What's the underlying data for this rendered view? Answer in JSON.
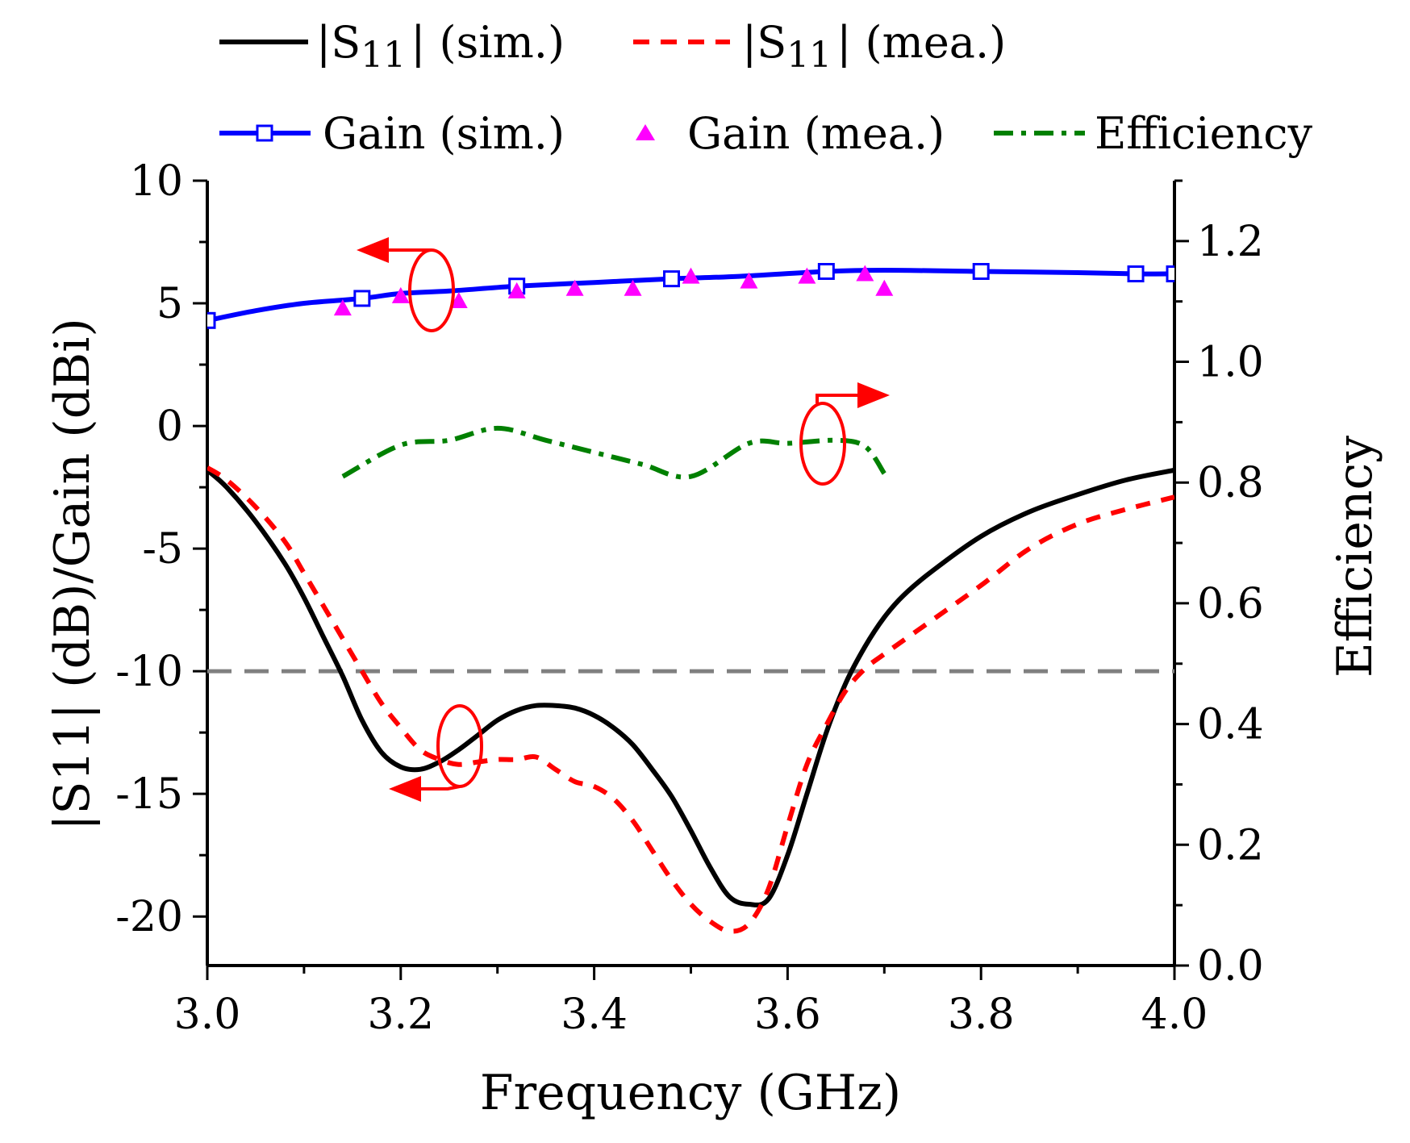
{
  "chart_data": {
    "type": "line",
    "xlabel": "Frequency (GHz)",
    "ylabel_left": "|S11| (dB)/Gain (dBi)",
    "ylabel_right": "Efficiency",
    "xlim": [
      3.0,
      4.0
    ],
    "ylim_left": [
      -22,
      10
    ],
    "ylim_right": [
      0.0,
      1.3
    ],
    "x_ticks": [
      "3.0",
      "3.2",
      "3.4",
      "3.6",
      "3.8",
      "4.0"
    ],
    "x_tick_values": [
      3.0,
      3.2,
      3.4,
      3.6,
      3.8,
      4.0
    ],
    "y_left_ticks": [
      "10",
      "5",
      "0",
      "-5",
      "-10",
      "-15",
      "-20"
    ],
    "y_left_tick_values": [
      10,
      5,
      0,
      -5,
      -10,
      -15,
      -20
    ],
    "y_right_ticks": [
      "1.2",
      "1.0",
      "0.8",
      "0.6",
      "0.4",
      "0.2",
      "0.0"
    ],
    "y_right_tick_values": [
      1.2,
      1.0,
      0.8,
      0.6,
      0.4,
      0.2,
      0.0
    ],
    "legend": {
      "position": "top",
      "s11_prefix": "|S",
      "s11_sub": "11",
      "s11_sim_suffix": "| (sim.)",
      "s11_mea_suffix": "| (mea.)",
      "gain_sim": "Gain (sim.)",
      "gain_mea": "Gain (mea.)",
      "efficiency": "Efficiency"
    },
    "reference_line": {
      "axis": "left",
      "y": -10,
      "color": "#808080",
      "style": "dashed"
    },
    "series": [
      {
        "name": "|S11| (sim.)",
        "axis": "left",
        "color": "#000000",
        "style": "solid",
        "x": [
          3.0,
          3.02,
          3.05,
          3.08,
          3.1,
          3.12,
          3.14,
          3.16,
          3.18,
          3.2,
          3.22,
          3.24,
          3.26,
          3.28,
          3.3,
          3.32,
          3.34,
          3.36,
          3.38,
          3.4,
          3.42,
          3.44,
          3.46,
          3.48,
          3.5,
          3.52,
          3.54,
          3.56,
          3.58,
          3.6,
          3.62,
          3.64,
          3.66,
          3.68,
          3.7,
          3.72,
          3.75,
          3.8,
          3.85,
          3.9,
          3.95,
          4.0
        ],
        "y": [
          -1.8,
          -2.5,
          -3.9,
          -5.6,
          -7.0,
          -8.6,
          -10.2,
          -12.0,
          -13.3,
          -13.9,
          -14.0,
          -13.7,
          -13.2,
          -12.6,
          -12.0,
          -11.6,
          -11.4,
          -11.4,
          -11.5,
          -11.8,
          -12.3,
          -13.0,
          -14.0,
          -15.1,
          -16.5,
          -18.0,
          -19.2,
          -19.5,
          -19.3,
          -17.5,
          -15.0,
          -12.5,
          -10.5,
          -9.0,
          -7.8,
          -6.9,
          -5.9,
          -4.5,
          -3.5,
          -2.8,
          -2.2,
          -1.8
        ]
      },
      {
        "name": "|S11| (mea.)",
        "axis": "left",
        "color": "#ff0000",
        "style": "dashed",
        "x": [
          3.0,
          3.02,
          3.05,
          3.08,
          3.1,
          3.13,
          3.16,
          3.18,
          3.2,
          3.22,
          3.24,
          3.26,
          3.28,
          3.3,
          3.32,
          3.34,
          3.36,
          3.38,
          3.4,
          3.42,
          3.44,
          3.46,
          3.48,
          3.5,
          3.52,
          3.54,
          3.56,
          3.58,
          3.6,
          3.62,
          3.64,
          3.66,
          3.68,
          3.7,
          3.75,
          3.8,
          3.85,
          3.9,
          3.95,
          4.0
        ],
        "y": [
          -1.7,
          -2.2,
          -3.3,
          -4.7,
          -6.0,
          -8.0,
          -10.0,
          -11.3,
          -12.3,
          -13.2,
          -13.6,
          -13.8,
          -13.7,
          -13.6,
          -13.6,
          -13.5,
          -14.0,
          -14.5,
          -14.7,
          -15.2,
          -16.1,
          -17.3,
          -18.5,
          -19.5,
          -20.2,
          -20.6,
          -20.3,
          -18.9,
          -16.3,
          -13.8,
          -12.2,
          -10.8,
          -9.9,
          -9.3,
          -7.9,
          -6.5,
          -5.0,
          -4.0,
          -3.4,
          -2.9
        ]
      },
      {
        "name": "Gain (sim.)",
        "axis": "left",
        "color": "#0000ff",
        "style": "solid",
        "marker": "square-open",
        "x": [
          3.0,
          3.05,
          3.1,
          3.16,
          3.2,
          3.25,
          3.32,
          3.4,
          3.48,
          3.55,
          3.64,
          3.7,
          3.8,
          3.9,
          3.96,
          4.0
        ],
        "y": [
          4.3,
          4.7,
          5.0,
          5.2,
          5.4,
          5.5,
          5.7,
          5.85,
          6.0,
          6.1,
          6.3,
          6.35,
          6.3,
          6.25,
          6.2,
          6.2
        ],
        "marker_x": [
          3.0,
          3.16,
          3.32,
          3.48,
          3.64,
          3.8,
          3.96,
          4.0
        ],
        "marker_y": [
          4.3,
          5.2,
          5.7,
          6.0,
          6.3,
          6.3,
          6.2,
          6.2
        ]
      },
      {
        "name": "Gain (mea.)",
        "axis": "left",
        "color": "#ff00ff",
        "style": "none",
        "marker": "triangle-filled",
        "x": [
          3.14,
          3.2,
          3.26,
          3.32,
          3.38,
          3.44,
          3.5,
          3.56,
          3.62,
          3.68,
          3.7
        ],
        "y": [
          4.8,
          5.3,
          5.1,
          5.5,
          5.6,
          5.6,
          6.1,
          5.9,
          6.1,
          6.2,
          5.6
        ]
      },
      {
        "name": "Efficiency",
        "axis": "right",
        "color": "#008000",
        "style": "dashdot",
        "x": [
          3.14,
          3.2,
          3.25,
          3.3,
          3.35,
          3.4,
          3.45,
          3.5,
          3.56,
          3.6,
          3.65,
          3.68,
          3.7
        ],
        "y": [
          0.81,
          0.862,
          0.87,
          0.89,
          0.87,
          0.85,
          0.83,
          0.81,
          0.865,
          0.865,
          0.87,
          0.86,
          0.815
        ]
      }
    ]
  }
}
